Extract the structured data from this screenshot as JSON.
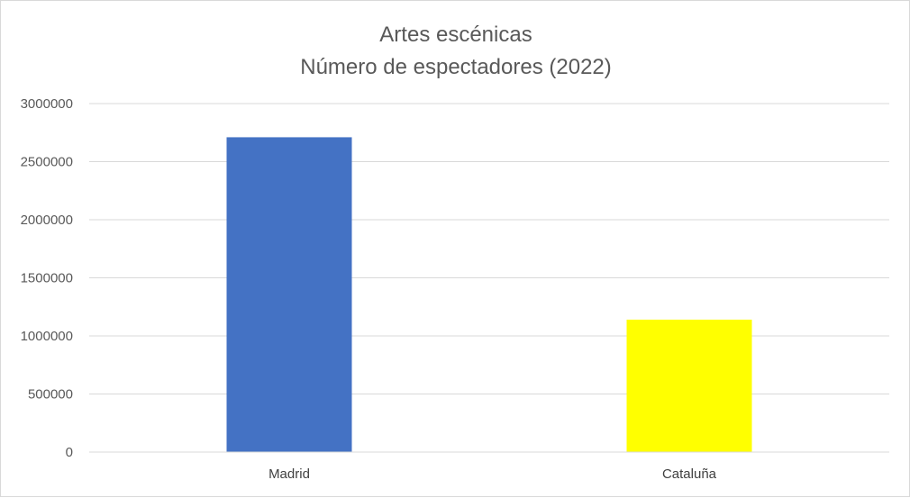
{
  "chart_data": {
    "type": "bar",
    "title": "Artes escénicas",
    "subtitle": "Número de espectadores (2022)",
    "categories": [
      "Madrid",
      "Cataluña"
    ],
    "values": [
      2710000,
      1140000
    ],
    "colors": [
      "#4472C4",
      "#FFFF00"
    ],
    "ylim": [
      0,
      3000000
    ],
    "yticks": [
      0,
      500000,
      1000000,
      1500000,
      2000000,
      2500000,
      3000000
    ],
    "ytick_labels": [
      "0",
      "500000",
      "1000000",
      "1500000",
      "2000000",
      "2500000",
      "3000000"
    ],
    "grid": true,
    "gridline_color": "#d9d9d9",
    "legend": "none"
  }
}
